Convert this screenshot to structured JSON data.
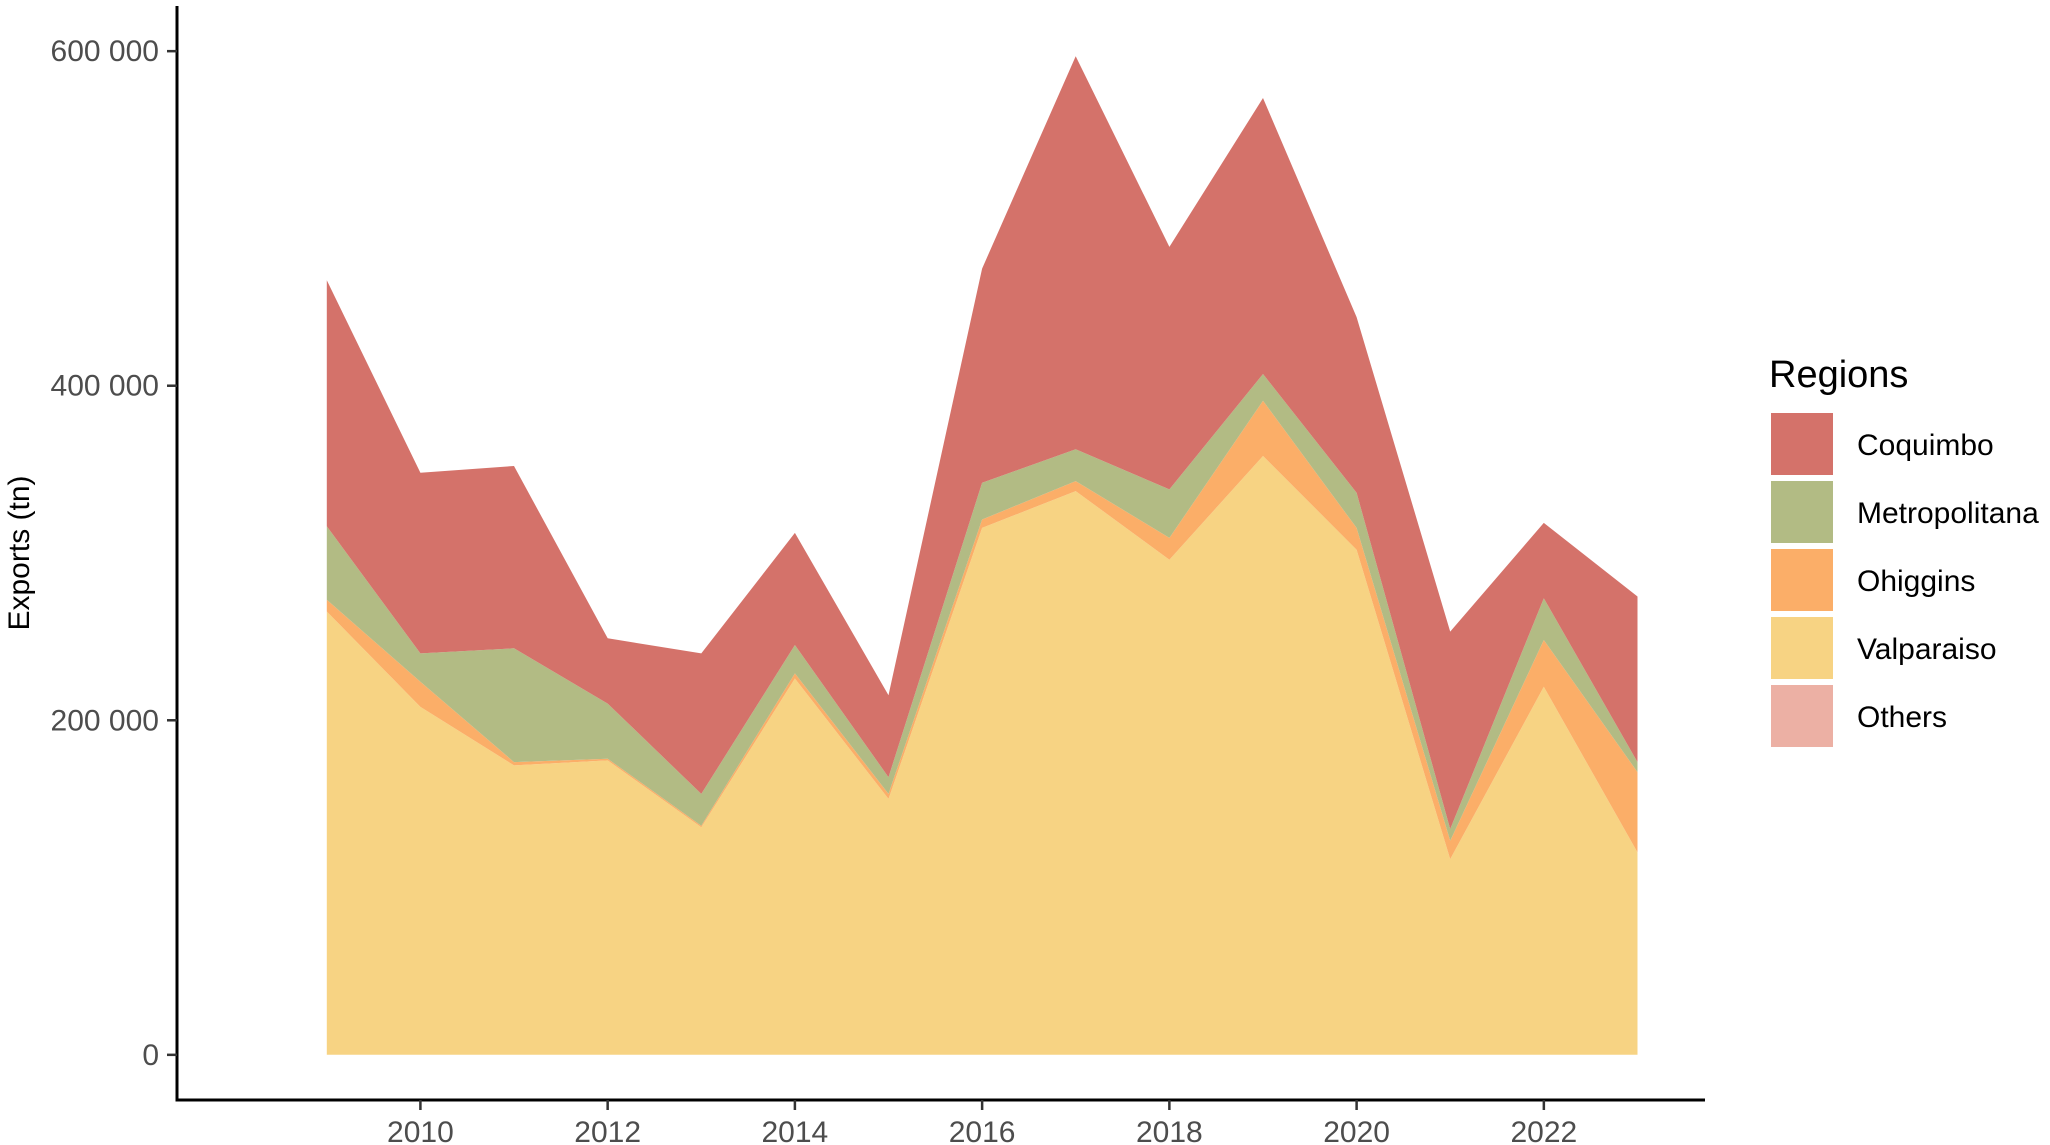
{
  "chart_data": {
    "type": "area",
    "stacked": true,
    "title": "",
    "xlabel": "",
    "ylabel": "Exports (tn)",
    "x": [
      2009,
      2010,
      2011,
      2012,
      2013,
      2014,
      2015,
      2016,
      2017,
      2018,
      2019,
      2020,
      2021,
      2022,
      2023
    ],
    "xlim": [
      2007.4,
      2023.7
    ],
    "ylim": [
      -27000,
      627000
    ],
    "x_ticks": [
      2010,
      2012,
      2014,
      2016,
      2018,
      2020,
      2022
    ],
    "x_tick_labels": [
      "2010",
      "2012",
      "2014",
      "2016",
      "2018",
      "2020",
      "2022"
    ],
    "y_ticks": [
      0,
      200000,
      400000,
      600000
    ],
    "y_tick_labels": [
      "0",
      "200 000",
      "400 000",
      "600 000"
    ],
    "grid": false,
    "legend": {
      "title": "Regions",
      "position": "right"
    },
    "series": [
      {
        "name": "Valparaiso",
        "color": "#F7D383",
        "values": [
          265000,
          208000,
          173000,
          176000,
          136000,
          225000,
          153000,
          315000,
          337000,
          296000,
          358000,
          302000,
          117000,
          220000,
          121000
        ]
      },
      {
        "name": "Ohiggins",
        "color": "#FBAE68",
        "values": [
          7000,
          15000,
          2000,
          1000,
          1000,
          3000,
          3000,
          5000,
          6000,
          13000,
          33000,
          13000,
          11000,
          28000,
          48000
        ]
      },
      {
        "name": "Metropolitana",
        "color": "#B2BB84",
        "values": [
          44000,
          17000,
          68000,
          33000,
          19000,
          17000,
          10000,
          22000,
          19000,
          29000,
          16000,
          21000,
          7000,
          25000,
          6000
        ]
      },
      {
        "name": "Coquimbo",
        "color": "#D4726A",
        "values": [
          147000,
          108000,
          109000,
          39000,
          84000,
          67000,
          49000,
          128000,
          235000,
          145000,
          165000,
          105000,
          118000,
          45000,
          99000
        ]
      },
      {
        "name": "Others",
        "color": "#ECB0A4",
        "values": [
          0,
          0,
          0,
          0,
          0,
          0,
          0,
          0,
          0,
          0,
          0,
          0,
          0,
          0,
          0
        ]
      }
    ],
    "legend_order": [
      "Coquimbo",
      "Metropolitana",
      "Ohiggins",
      "Valparaiso",
      "Others"
    ]
  }
}
